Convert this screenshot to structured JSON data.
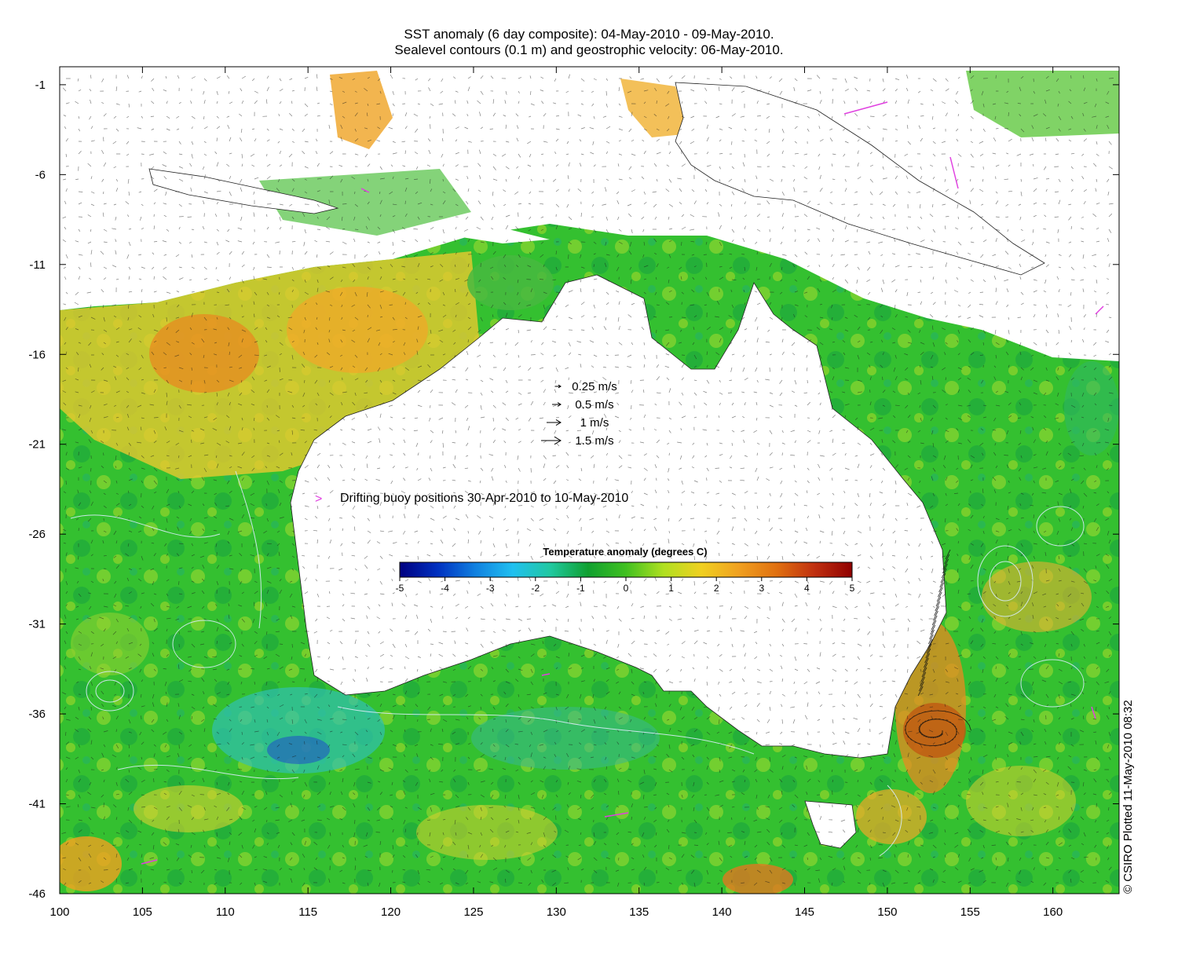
{
  "titles": {
    "line1": "SST anomaly (6 day composite): 04-May-2010 - 09-May-2010.",
    "line2": "Sealevel contours (0.1 m) and geostrophic velocity: 06-May-2010."
  },
  "axes": {
    "lon_ticks": [
      "100",
      "105",
      "110",
      "115",
      "120",
      "125",
      "130",
      "135",
      "140",
      "145",
      "150",
      "155",
      "160"
    ],
    "lat_ticks": [
      "-1",
      "-6",
      "-11",
      "-16",
      "-21",
      "-26",
      "-31",
      "-36",
      "-41",
      "-46"
    ]
  },
  "velocity_legend": [
    {
      "label": "0.25 m/s",
      "speed": 0.25
    },
    {
      "label": "0.5 m/s",
      "speed": 0.5
    },
    {
      "label": "1 m/s",
      "speed": 1
    },
    {
      "label": "1.5 m/s",
      "speed": 1.5
    }
  ],
  "buoy_legend": {
    "symbol": ">",
    "label": "Drifting buoy positions 30-Apr-2010 to 10-May-2010",
    "color": "#e040e0"
  },
  "colorbar": {
    "title": "Temperature anomaly (degrees C)",
    "ticks": [
      "-5",
      "-4",
      "-3",
      "-2",
      "-1",
      "0",
      "1",
      "2",
      "3",
      "4",
      "5"
    ],
    "colors": [
      "#000080",
      "#0030c0",
      "#1080e0",
      "#20c0f0",
      "#20c8a0",
      "#10a030",
      "#40c020",
      "#b0e020",
      "#f0d020",
      "#f0a020",
      "#e07010",
      "#c03010",
      "#900000"
    ]
  },
  "credit": "© CSIRO Plotted 11-May-2010 08:32"
}
